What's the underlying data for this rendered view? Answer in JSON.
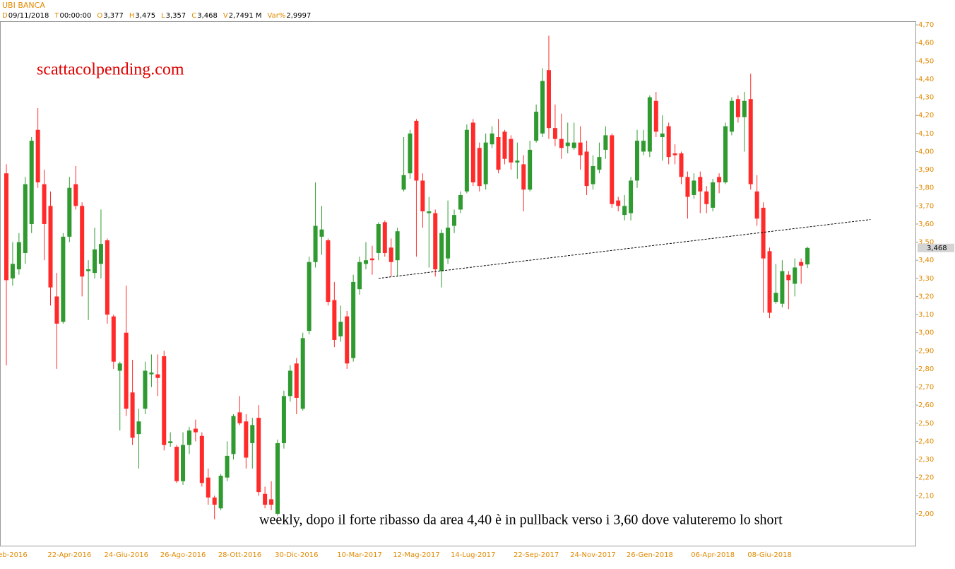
{
  "header": {
    "title": "UBI BANCA",
    "fields": [
      {
        "key": "D",
        "value": "09/11/2018"
      },
      {
        "key": "T",
        "value": "00:00:00"
      },
      {
        "key": "O",
        "value": "3,377"
      },
      {
        "key": "H",
        "value": "3,475"
      },
      {
        "key": "L",
        "value": "3,357"
      },
      {
        "key": "C",
        "value": "3,468"
      },
      {
        "key": "V",
        "value": "2,7491 M"
      },
      {
        "key": "Var%",
        "value": "2,9997"
      }
    ]
  },
  "chart_data": {
    "type": "candlestick",
    "annotations": [
      "scattacolpending.com",
      "weekly, dopo il forte ribasso da area 4,40 è in pullback verso i 3,60 dove valuteremo lo short"
    ],
    "up_color": "#2f9a2f",
    "down_color": "#ff2b2b",
    "categories": [
      null,
      "eb-2016",
      null,
      null,
      null,
      null,
      null,
      null,
      null,
      null,
      "22-Apr-2016",
      null,
      null,
      null,
      null,
      null,
      null,
      null,
      null,
      "24-Giu-2016",
      null,
      null,
      null,
      null,
      null,
      null,
      null,
      null,
      "26-Ago-2016",
      null,
      null,
      null,
      null,
      null,
      null,
      null,
      null,
      "28-Ott-2016",
      null,
      null,
      null,
      null,
      null,
      null,
      null,
      null,
      "30-Dic-2016",
      null,
      null,
      null,
      null,
      null,
      null,
      null,
      null,
      null,
      "10-Mar-2017",
      null,
      null,
      null,
      null,
      null,
      null,
      null,
      null,
      "12-Mag-2017",
      null,
      null,
      null,
      null,
      null,
      null,
      null,
      null,
      "14-Lug-2017",
      null,
      null,
      null,
      null,
      null,
      null,
      null,
      null,
      null,
      "22-Sep-2017",
      null,
      null,
      null,
      null,
      null,
      null,
      null,
      null,
      "24-Nov-2017",
      null,
      null,
      null,
      null,
      null,
      null,
      null,
      null,
      "26-Gen-2018",
      null,
      null,
      null,
      null,
      null,
      null,
      null,
      null,
      null,
      "06-Apr-2018",
      null,
      null,
      null,
      null,
      null,
      null,
      null,
      null,
      "08-Giu-2018",
      null,
      null,
      null,
      null,
      null,
      null
    ],
    "open": [
      3.88,
      3.3,
      3.35,
      3.44,
      3.6,
      4.12,
      3.82,
      3.7,
      3.2,
      3.06,
      3.53,
      3.82,
      3.7,
      3.34,
      3.33,
      3.38,
      3.51,
      3.09,
      2.79,
      3.0,
      2.67,
      2.44,
      2.58,
      2.77,
      2.77,
      2.87,
      2.39,
      2.37,
      2.18,
      2.38,
      2.47,
      2.43,
      2.2,
      2.09,
      2.03,
      2.2,
      2.33,
      2.56,
      2.51,
      2.39,
      2.53,
      2.11,
      2.08,
      2.0,
      2.39,
      2.65,
      2.83,
      2.58,
      3.01,
      3.39,
      3.53,
      3.51,
      3.18,
      2.98,
      3.09,
      2.86,
      3.24,
      3.38,
      3.41,
      3.44,
      3.61,
      3.47,
      3.4,
      3.79,
      3.88,
      4.17,
      3.84,
      3.66,
      3.66,
      3.34,
      3.41,
      3.59,
      3.68,
      3.78,
      4.16,
      4.02,
      3.82,
      4.04,
      4.08,
      4.11,
      4.07,
      3.94,
      3.93,
      3.79,
      4.06,
      4.1,
      4.45,
      4.13,
      4.07,
      4.03,
      4.02,
      4.05,
      4.0,
      3.82,
      3.9,
      4.01,
      4.09,
      3.73,
      3.65,
      3.66,
      3.84,
      4.0,
      4.0,
      4.28,
      4.08,
      4.14,
      3.99,
      3.99,
      3.86,
      3.76,
      3.86,
      3.78,
      3.69,
      3.86,
      3.83,
      4.11,
      4.29,
      4.19,
      4.29,
      3.78,
      3.69,
      3.45,
      3.17,
      3.16,
      3.32,
      3.27,
      3.39,
      3.377
    ],
    "high": [
      3.93,
      3.5,
      3.55,
      3.86,
      4.08,
      4.24,
      3.9,
      3.78,
      3.33,
      3.55,
      3.86,
      3.92,
      3.72,
      3.4,
      3.58,
      3.68,
      3.52,
      3.1,
      2.84,
      3.26,
      2.85,
      2.58,
      2.84,
      2.88,
      2.88,
      2.9,
      2.45,
      2.38,
      2.45,
      2.48,
      2.52,
      2.45,
      2.25,
      2.1,
      2.22,
      2.4,
      2.55,
      2.65,
      2.55,
      2.53,
      2.6,
      2.15,
      2.18,
      2.41,
      2.68,
      2.82,
      2.86,
      3.0,
      3.42,
      3.83,
      3.7,
      3.52,
      3.28,
      3.15,
      3.12,
      3.32,
      3.42,
      3.5,
      3.48,
      3.61,
      3.62,
      3.52,
      3.58,
      4.08,
      4.12,
      4.18,
      3.88,
      3.75,
      3.68,
      3.57,
      3.73,
      3.68,
      3.78,
      4.15,
      4.18,
      4.05,
      4.1,
      4.14,
      4.18,
      4.12,
      4.09,
      4.05,
      3.98,
      4.06,
      4.26,
      4.46,
      4.64,
      4.26,
      4.21,
      4.16,
      4.16,
      4.14,
      4.06,
      3.98,
      4.05,
      4.14,
      4.1,
      3.75,
      3.76,
      3.86,
      4.12,
      4.12,
      4.31,
      4.33,
      4.2,
      4.16,
      4.04,
      4.0,
      3.89,
      3.88,
      3.89,
      3.81,
      3.85,
      3.88,
      4.16,
      4.3,
      4.31,
      4.33,
      4.43,
      3.87,
      3.72,
      3.47,
      3.38,
      3.4,
      3.34,
      3.41,
      3.41,
      3.475
    ],
    "low": [
      2.82,
      3.26,
      3.32,
      3.38,
      3.55,
      3.8,
      3.4,
      3.15,
      2.8,
      3.05,
      3.5,
      3.68,
      3.2,
      3.07,
      3.3,
      3.3,
      3.05,
      2.8,
      2.46,
      2.54,
      2.38,
      2.25,
      2.55,
      2.7,
      2.65,
      2.35,
      2.37,
      2.17,
      2.16,
      2.33,
      2.4,
      2.15,
      2.05,
      1.97,
      2.02,
      2.18,
      2.3,
      2.49,
      2.25,
      2.25,
      2.1,
      2.03,
      2.02,
      1.99,
      2.36,
      2.62,
      2.55,
      2.57,
      2.99,
      3.36,
      3.43,
      3.15,
      2.92,
      2.95,
      2.8,
      2.84,
      3.21,
      3.35,
      3.32,
      3.4,
      3.42,
      3.31,
      3.31,
      3.78,
      3.85,
      3.42,
      3.58,
      3.36,
      3.31,
      3.25,
      3.38,
      3.55,
      3.66,
      3.77,
      3.81,
      3.78,
      3.79,
      4.02,
      3.88,
      3.93,
      3.9,
      3.85,
      3.67,
      3.78,
      4.05,
      4.08,
      4.07,
      4.03,
      3.96,
      3.99,
      4.01,
      3.9,
      3.76,
      3.79,
      3.88,
      3.96,
      3.69,
      3.67,
      3.62,
      3.62,
      3.8,
      3.98,
      3.97,
      4.08,
      3.95,
      3.93,
      3.93,
      3.82,
      3.63,
      3.74,
      3.66,
      3.66,
      3.67,
      3.77,
      3.82,
      4.09,
      4.16,
      4.0,
      3.79,
      3.59,
      3.11,
      3.08,
      3.16,
      3.14,
      3.13,
      3.2,
      3.27,
      3.357
    ],
    "close": [
      3.29,
      3.38,
      3.5,
      3.82,
      4.06,
      3.83,
      3.6,
      3.25,
      3.05,
      3.53,
      3.8,
      3.7,
      3.31,
      3.35,
      3.46,
      3.49,
      3.1,
      2.84,
      2.83,
      2.58,
      2.42,
      2.51,
      2.79,
      2.78,
      2.75,
      2.38,
      2.4,
      2.18,
      2.38,
      2.46,
      2.45,
      2.17,
      2.09,
      2.05,
      2.21,
      2.32,
      2.54,
      2.5,
      2.31,
      2.49,
      2.12,
      2.05,
      2.05,
      2.39,
      2.65,
      2.79,
      2.64,
      2.97,
      3.39,
      3.59,
      3.57,
      3.17,
      2.96,
      3.06,
      2.83,
      3.28,
      3.39,
      3.4,
      3.4,
      3.6,
      3.44,
      3.39,
      3.56,
      3.87,
      4.1,
      3.84,
      3.67,
      3.67,
      3.35,
      3.55,
      3.58,
      3.65,
      3.76,
      4.12,
      3.83,
      3.81,
      4.05,
      4.1,
      3.9,
      3.96,
      3.94,
      3.95,
      3.79,
      4.01,
      4.22,
      4.39,
      4.13,
      4.07,
      4.02,
      4.05,
      4.05,
      3.98,
      3.81,
      3.92,
      3.97,
      4.09,
      3.71,
      3.7,
      3.7,
      3.84,
      4.06,
      4.06,
      4.3,
      4.11,
      4.1,
      3.97,
      3.98,
      3.86,
      3.75,
      3.84,
      3.78,
      3.71,
      3.83,
      3.83,
      4.14,
      4.28,
      4.19,
      4.28,
      3.82,
      3.63,
      3.41,
      3.11,
      3.22,
      3.34,
      3.29,
      3.36,
      3.37,
      3.468
    ],
    "last_price_label": "3,468",
    "trendline": {
      "x": [
        59,
        137
      ],
      "y": [
        3.3,
        3.625
      ]
    },
    "ylim": [
      1.82,
      4.72
    ],
    "yticks": [
      {
        "value": 2.0,
        "label": "2,00"
      },
      {
        "value": 2.1,
        "label": "2,10"
      },
      {
        "value": 2.2,
        "label": "2,20"
      },
      {
        "value": 2.3,
        "label": "2,30"
      },
      {
        "value": 2.4,
        "label": "2,40"
      },
      {
        "value": 2.5,
        "label": "2,50"
      },
      {
        "value": 2.6,
        "label": "2,60"
      },
      {
        "value": 2.7,
        "label": "2,70"
      },
      {
        "value": 2.8,
        "label": "2,80"
      },
      {
        "value": 2.9,
        "label": "2,90"
      },
      {
        "value": 3.0,
        "label": "3,00"
      },
      {
        "value": 3.1,
        "label": "3,10"
      },
      {
        "value": 3.2,
        "label": "3,20"
      },
      {
        "value": 3.3,
        "label": "3,30"
      },
      {
        "value": 3.4,
        "label": "3,40"
      },
      {
        "value": 3.5,
        "label": "3,50"
      },
      {
        "value": 3.6,
        "label": "3,60"
      },
      {
        "value": 3.7,
        "label": "3,70"
      },
      {
        "value": 3.8,
        "label": "3,80"
      },
      {
        "value": 3.9,
        "label": "3,90"
      },
      {
        "value": 4.0,
        "label": "4,00"
      },
      {
        "value": 4.1,
        "label": "4,10"
      },
      {
        "value": 4.2,
        "label": "4,20"
      },
      {
        "value": 4.3,
        "label": "4,30"
      },
      {
        "value": 4.4,
        "label": "4,40"
      },
      {
        "value": 4.5,
        "label": "4,50"
      },
      {
        "value": 4.6,
        "label": "4,60"
      },
      {
        "value": 4.7,
        "label": "4,70"
      }
    ],
    "grid": false
  }
}
